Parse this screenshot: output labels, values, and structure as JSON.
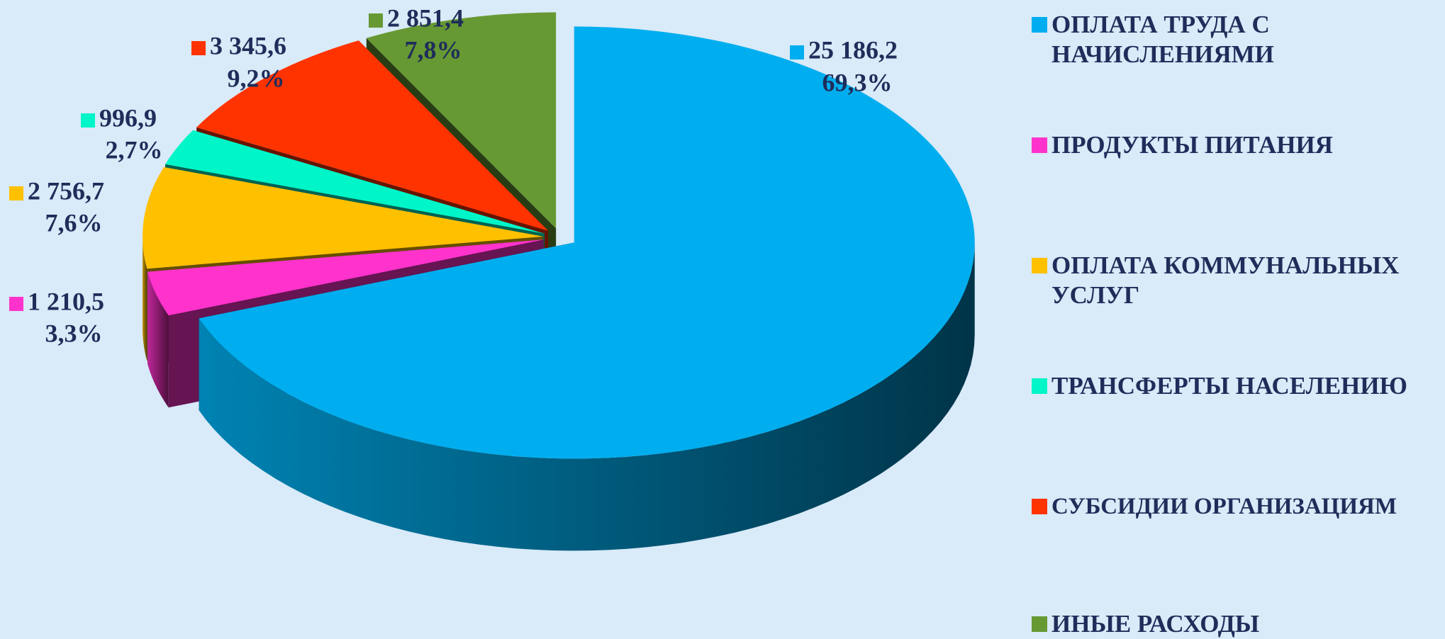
{
  "chart_data": {
    "type": "pie",
    "categories": [
      "ОПЛАТА ТРУДА С НАЧИСЛЕНИЯМИ",
      "ПРОДУКТЫ ПИТАНИЯ",
      "ОПЛАТА КОММУНАЛЬНЫХ УСЛУГ",
      "ТРАНСФЕРТЫ НАСЕЛЕНИЮ",
      "СУБСИДИИ ОРГАНИЗАЦИЯМ",
      "ИНЫЕ РАСХОДЫ"
    ],
    "values": [
      25186.2,
      1210.5,
      2756.7,
      996.9,
      3345.6,
      2851.4
    ],
    "value_labels": [
      "25 186,2",
      "1 210,5",
      "2 756,7",
      "996,9",
      "3 345,6",
      "2 851,4"
    ],
    "percents": [
      69.3,
      3.3,
      7.6,
      2.7,
      9.2,
      7.8
    ],
    "percent_labels": [
      "69,3%",
      "3,3%",
      "7,6%",
      "2,7%",
      "9,2%",
      "7,8%"
    ],
    "colors": [
      "#00aeef",
      "#ff33cc",
      "#ffc000",
      "#00f5c8",
      "#ff3300",
      "#669933"
    ],
    "legend": "right"
  }
}
